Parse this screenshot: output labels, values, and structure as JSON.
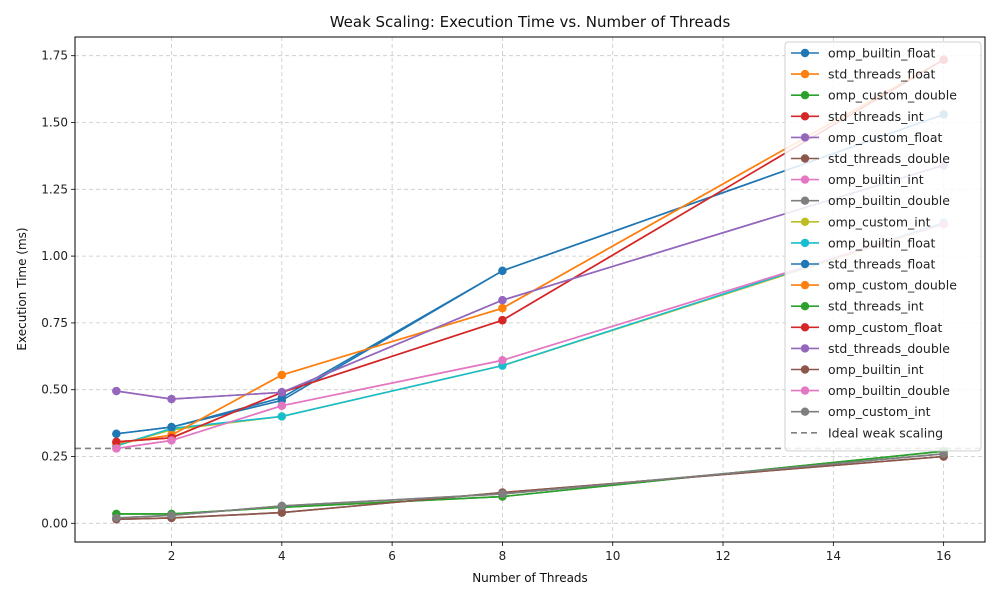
{
  "chart_data": {
    "type": "line",
    "title": "Weak Scaling: Execution Time vs. Number of Threads",
    "xlabel": "Number of Threads",
    "ylabel": "Execution Time (ms)",
    "xlim": [
      0.25,
      16.75
    ],
    "ylim": [
      -0.07,
      1.82
    ],
    "xticks": [
      2,
      4,
      6,
      8,
      10,
      12,
      14,
      16
    ],
    "yticks": [
      0.0,
      0.25,
      0.5,
      0.75,
      1.0,
      1.25,
      1.5,
      1.75
    ],
    "ytick_labels": [
      "0.00",
      "0.25",
      "0.50",
      "0.75",
      "1.00",
      "1.25",
      "1.50",
      "1.75"
    ],
    "grid": true,
    "legend_position": "top-right",
    "x": [
      1,
      2,
      4,
      8,
      16
    ],
    "series": [
      {
        "name": "omp_builtin_float",
        "color": "#1f77b4",
        "values": [
          0.335,
          0.36,
          0.47,
          0.945,
          1.53
        ]
      },
      {
        "name": "std_threads_float",
        "color": "#ff7f0e",
        "values": [
          0.3,
          0.33,
          0.555,
          0.805,
          1.735
        ]
      },
      {
        "name": "omp_custom_double",
        "color": "#2ca02c",
        "values": [
          0.035,
          0.035,
          0.06,
          0.1,
          0.27
        ]
      },
      {
        "name": "std_threads_int",
        "color": "#d62728",
        "values": [
          0.305,
          0.32,
          0.49,
          0.76,
          1.735
        ]
      },
      {
        "name": "omp_custom_float",
        "color": "#9467bd",
        "values": [
          0.495,
          0.465,
          0.49,
          0.835,
          1.34
        ]
      },
      {
        "name": "std_threads_double",
        "color": "#8c564b",
        "values": [
          0.015,
          0.02,
          0.04,
          0.115,
          0.25
        ]
      },
      {
        "name": "omp_builtin_int",
        "color": "#e377c2",
        "values": [
          0.28,
          0.31,
          0.44,
          0.61,
          1.12
        ]
      },
      {
        "name": "omp_builtin_double",
        "color": "#7f7f7f",
        "values": [
          0.02,
          0.03,
          0.065,
          0.11,
          0.26
        ]
      },
      {
        "name": "omp_custom_int",
        "color": "#bcbd22",
        "values": [
          0.29,
          0.35,
          0.4,
          0.59,
          1.12
        ]
      },
      {
        "name": "omp_builtin_float",
        "color": "#17becf",
        "values": [
          0.29,
          0.355,
          0.4,
          0.59,
          1.125
        ]
      },
      {
        "name": "std_threads_float",
        "color": "#1f77b4",
        "values": [
          0.335,
          0.36,
          0.46,
          0.945,
          1.53
        ]
      },
      {
        "name": "omp_custom_double",
        "color": "#ff7f0e",
        "values": [
          0.3,
          0.33,
          0.555,
          0.805,
          1.735
        ]
      },
      {
        "name": "std_threads_int",
        "color": "#2ca02c",
        "values": [
          0.035,
          0.035,
          0.06,
          0.1,
          0.27
        ]
      },
      {
        "name": "omp_custom_float",
        "color": "#d62728",
        "values": [
          0.305,
          0.32,
          0.49,
          0.76,
          1.735
        ]
      },
      {
        "name": "std_threads_double",
        "color": "#9467bd",
        "values": [
          0.495,
          0.465,
          0.49,
          0.835,
          1.34
        ]
      },
      {
        "name": "omp_builtin_int",
        "color": "#8c564b",
        "values": [
          0.015,
          0.02,
          0.04,
          0.115,
          0.25
        ]
      },
      {
        "name": "omp_builtin_double",
        "color": "#e377c2",
        "values": [
          0.28,
          0.31,
          0.44,
          0.61,
          1.12
        ]
      },
      {
        "name": "omp_custom_int",
        "color": "#7f7f7f",
        "values": [
          0.02,
          0.03,
          0.065,
          0.11,
          0.26
        ]
      }
    ],
    "reference_line": {
      "name": "Ideal weak scaling",
      "color": "#808080",
      "style": "dashed",
      "y": 0.28
    }
  }
}
